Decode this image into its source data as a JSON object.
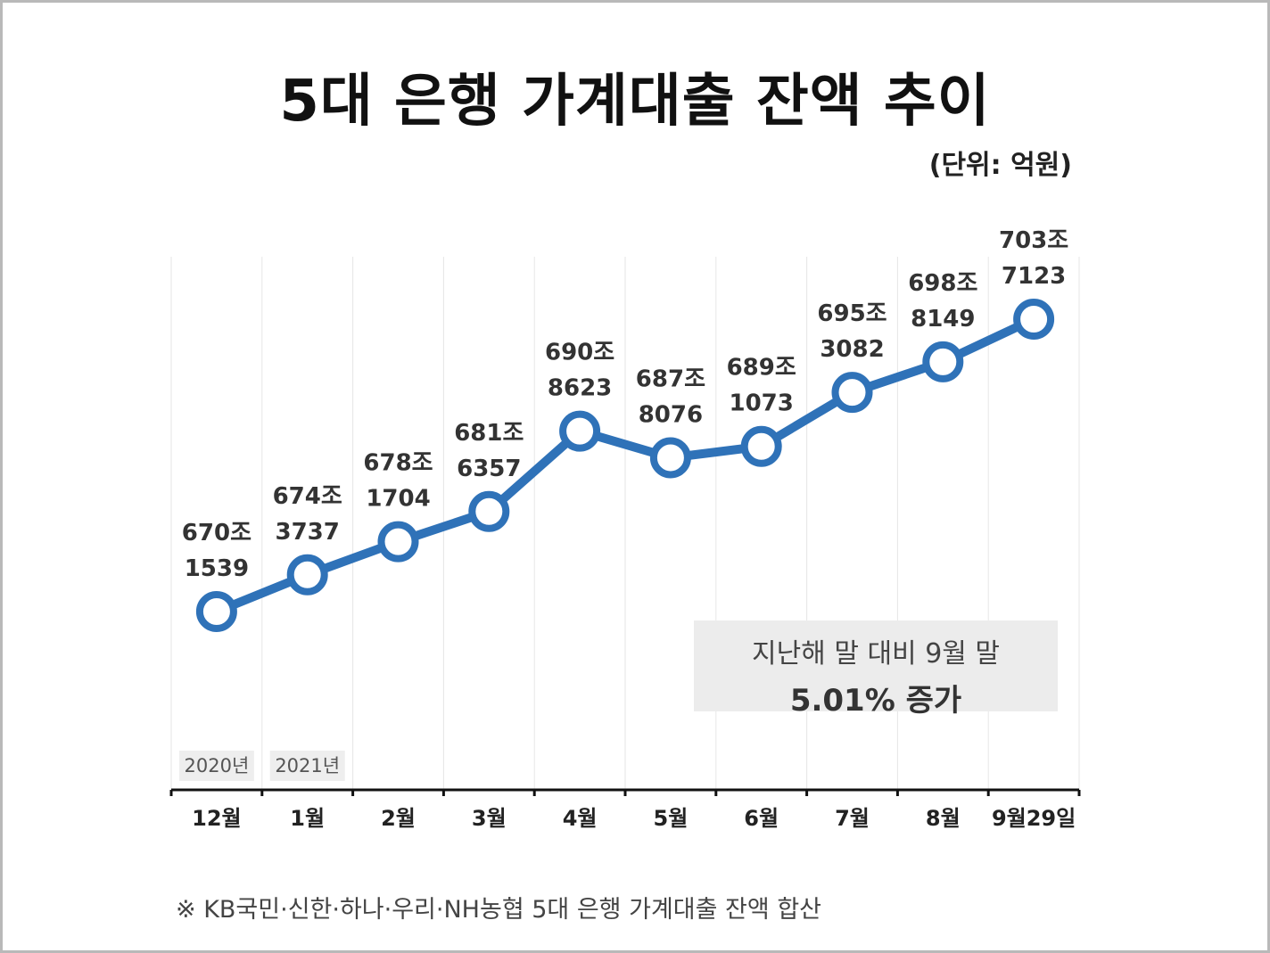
{
  "title": "5대 은행 가계대출 잔액 추이",
  "unit": "(단위: 억원)",
  "chart_data": {
    "type": "line",
    "title": "5대 은행 가계대출 잔액 추이",
    "unit": "(단위: 억원)",
    "categories": [
      "12월",
      "1월",
      "2월",
      "3월",
      "4월",
      "5월",
      "6월",
      "7월",
      "8월",
      "9월29일"
    ],
    "year_labels": [
      {
        "label": "2020년",
        "category": "12월"
      },
      {
        "label": "2021년",
        "category": "1월"
      }
    ],
    "series": [
      {
        "values": [
          6701539,
          6743737,
          6781704,
          6816357,
          6908623,
          6878076,
          6891073,
          6953082,
          6988149,
          7037123
        ],
        "labels": [
          [
            "670조",
            "1539"
          ],
          [
            "674조",
            "3737"
          ],
          [
            "678조",
            "1704"
          ],
          [
            "681조",
            "6357"
          ],
          [
            "690조",
            "8623"
          ],
          [
            "687조",
            "8076"
          ],
          [
            "689조",
            "1073"
          ],
          [
            "695조",
            "3082"
          ],
          [
            "698조",
            "8149"
          ],
          [
            "703조",
            "7123"
          ]
        ]
      }
    ],
    "grid": "vertical",
    "line_color": "#2f72b8"
  },
  "callout": {
    "line1": "지난해 말 대비 9월 말",
    "line2": "5.01% 증가"
  },
  "footnote": "※ KB국민·신한·하나·우리·NH농협 5대 은행 가계대출 잔액 합산"
}
